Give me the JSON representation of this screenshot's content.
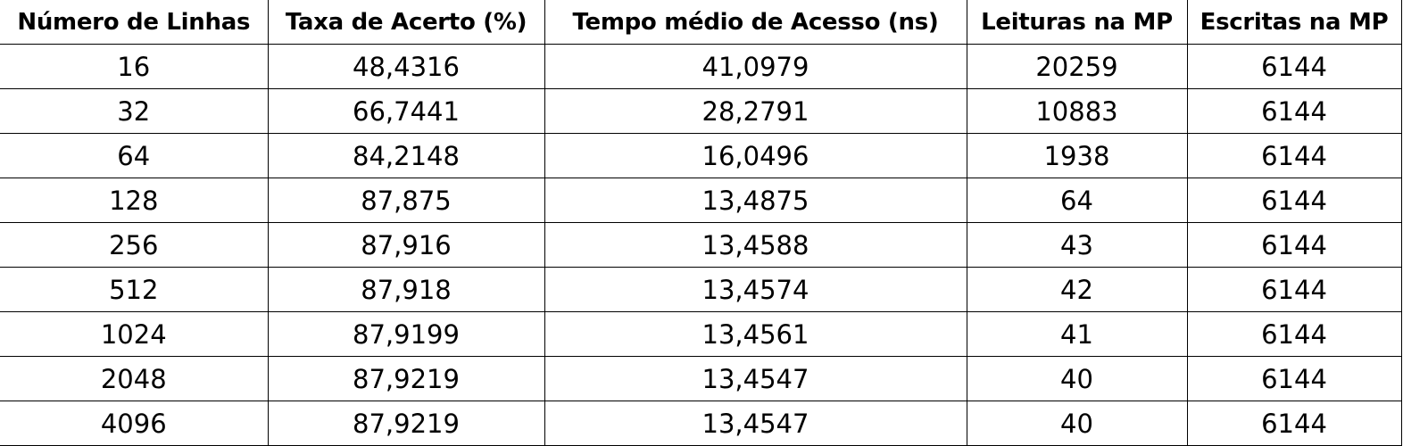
{
  "table": {
    "headers": [
      "Número de Linhas",
      "Taxa de Acerto (%)",
      "Tempo médio de Acesso (ns)",
      "Leituras na MP",
      "Escritas na MP"
    ],
    "rows": [
      [
        "16",
        "48,4316",
        "41,0979",
        "20259",
        "6144"
      ],
      [
        "32",
        "66,7441",
        "28,2791",
        "10883",
        "6144"
      ],
      [
        "64",
        "84,2148",
        "16,0496",
        "1938",
        "6144"
      ],
      [
        "128",
        "87,875",
        "13,4875",
        "64",
        "6144"
      ],
      [
        "256",
        "87,916",
        "13,4588",
        "43",
        "6144"
      ],
      [
        "512",
        "87,918",
        "13,4574",
        "42",
        "6144"
      ],
      [
        "1024",
        "87,9199",
        "13,4561",
        "41",
        "6144"
      ],
      [
        "2048",
        "87,9219",
        "13,4547",
        "40",
        "6144"
      ],
      [
        "4096",
        "87,9219",
        "13,4547",
        "40",
        "6144"
      ]
    ]
  }
}
